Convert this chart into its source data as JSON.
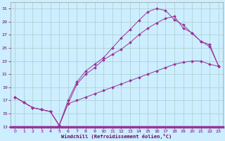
{
  "xlabel": "Windchill (Refroidissement éolien,°C)",
  "bg_color": "#cceeff",
  "line_color": "#993399",
  "grid_color": "#aacccc",
  "xlim": [
    -0.5,
    23.5
  ],
  "ylim": [
    13,
    32
  ],
  "xticks": [
    0,
    1,
    2,
    3,
    4,
    5,
    6,
    7,
    8,
    9,
    10,
    11,
    12,
    13,
    14,
    15,
    16,
    17,
    18,
    19,
    20,
    21,
    22,
    23
  ],
  "yticks": [
    13,
    15,
    17,
    19,
    21,
    23,
    25,
    27,
    29,
    31
  ],
  "curve1_x": [
    0,
    1,
    2,
    3,
    4,
    5,
    6,
    7,
    8,
    9,
    10,
    11,
    12,
    13,
    14,
    15,
    16,
    17,
    18,
    19,
    20,
    21,
    22,
    23
  ],
  "curve1_y": [
    17.5,
    16.7,
    15.9,
    15.6,
    15.3,
    13.2,
    17.0,
    19.8,
    21.5,
    22.5,
    23.5,
    25.0,
    26.5,
    27.8,
    29.2,
    30.5,
    31.0,
    30.7,
    29.3,
    28.5,
    27.2,
    26.0,
    25.5,
    22.2
  ],
  "curve2_x": [
    0,
    1,
    2,
    3,
    4,
    5,
    6,
    7,
    8,
    9,
    10,
    11,
    12,
    13,
    14,
    15,
    16,
    17,
    18,
    19,
    20,
    21,
    22,
    23
  ],
  "curve2_y": [
    17.5,
    16.7,
    15.9,
    15.6,
    15.3,
    13.2,
    16.5,
    19.5,
    21.0,
    22.0,
    23.2,
    24.0,
    24.8,
    25.8,
    27.0,
    28.0,
    28.8,
    29.5,
    29.8,
    28.0,
    27.3,
    26.0,
    25.2,
    22.2
  ],
  "curve3_x": [
    0,
    1,
    2,
    3,
    4,
    5,
    6,
    7,
    8,
    9,
    10,
    11,
    12,
    13,
    14,
    15,
    16,
    17,
    18,
    19,
    20,
    21,
    22,
    23
  ],
  "curve3_y": [
    17.5,
    16.7,
    15.9,
    15.6,
    15.3,
    13.2,
    16.5,
    17.0,
    17.5,
    18.0,
    18.5,
    19.0,
    19.5,
    20.0,
    20.5,
    21.0,
    21.5,
    22.0,
    22.5,
    22.8,
    23.0,
    23.0,
    22.5,
    22.2
  ]
}
